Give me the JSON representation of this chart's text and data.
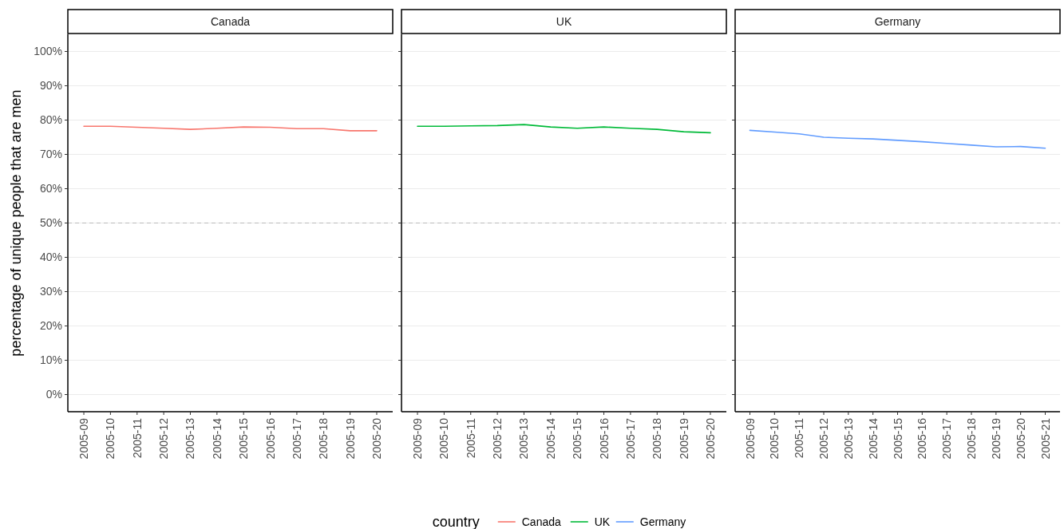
{
  "chart_data": [
    {
      "type": "line",
      "title": "Canada",
      "ylabel": "percentage of unique people that are men",
      "legend_title": "country",
      "legend": "bottom",
      "grid": "y",
      "line_style": "solid",
      "marker": "none",
      "categories": [
        "2005-09",
        "2005-10",
        "2005-11",
        "2005-12",
        "2005-13",
        "2005-14",
        "2005-15",
        "2005-16",
        "2005-17",
        "2005-18",
        "2005-19",
        "2005-20"
      ],
      "series": [
        {
          "name": "Canada",
          "color": "#f8766d",
          "values": [
            78.2,
            78.2,
            77.9,
            77.6,
            77.3,
            77.6,
            78.0,
            77.9,
            77.5,
            77.5,
            76.9,
            76.9
          ]
        }
      ],
      "ylim": [
        -5,
        105
      ],
      "yticks": [
        {
          "value": 0,
          "label": "0%"
        },
        {
          "value": 10,
          "label": "10%"
        },
        {
          "value": 20,
          "label": "20%"
        },
        {
          "value": 30,
          "label": "30%"
        },
        {
          "value": 40,
          "label": "40%"
        },
        {
          "value": 50,
          "label": "50%"
        },
        {
          "value": 60,
          "label": "60%"
        },
        {
          "value": 70,
          "label": "70%"
        },
        {
          "value": 80,
          "label": "80%"
        },
        {
          "value": 90,
          "label": "90%"
        },
        {
          "value": 100,
          "label": "100%"
        }
      ],
      "ref_lines": [
        {
          "axis": "y",
          "value": 50,
          "color": "#bbbbbb",
          "line_style": "dashed"
        }
      ]
    },
    {
      "type": "line",
      "title": "UK",
      "legend": "bottom",
      "grid": "y",
      "line_style": "solid",
      "marker": "none",
      "tick_labels": "x",
      "categories": [
        "2005-09",
        "2005-10",
        "2005-11",
        "2005-12",
        "2005-13",
        "2005-14",
        "2005-15",
        "2005-16",
        "2005-17",
        "2005-18",
        "2005-19",
        "2005-20"
      ],
      "series": [
        {
          "name": "UK",
          "color": "#00ba38",
          "values": [
            78.2,
            78.2,
            78.3,
            78.4,
            78.7,
            78.0,
            77.6,
            78.0,
            77.6,
            77.3,
            76.6,
            76.3
          ]
        }
      ],
      "ylim": [
        -5,
        105
      ],
      "yticks": [
        {
          "value": 0,
          "label": null
        },
        {
          "value": 10,
          "label": null
        },
        {
          "value": 20,
          "label": null
        },
        {
          "value": 30,
          "label": null
        },
        {
          "value": 40,
          "label": null
        },
        {
          "value": 50,
          "label": null
        },
        {
          "value": 60,
          "label": null
        },
        {
          "value": 70,
          "label": null
        },
        {
          "value": 80,
          "label": null
        },
        {
          "value": 90,
          "label": null
        },
        {
          "value": 100,
          "label": null
        }
      ],
      "ref_lines": [
        {
          "axis": "y",
          "value": 50,
          "color": "#bbbbbb",
          "line_style": "dashed"
        }
      ]
    },
    {
      "type": "line",
      "title": "Germany",
      "legend": "bottom",
      "grid": "y",
      "line_style": "solid",
      "marker": "none",
      "tick_labels": "x",
      "categories": [
        "2005-09",
        "2005-10",
        "2005-11",
        "2005-12",
        "2005-13",
        "2005-14",
        "2005-15",
        "2005-16",
        "2005-17",
        "2005-18",
        "2005-19",
        "2005-20",
        "2005-21"
      ],
      "series": [
        {
          "name": "Germany",
          "color": "#619cff",
          "values": [
            77.0,
            76.5,
            76.0,
            75.0,
            74.7,
            74.5,
            74.1,
            73.7,
            73.2,
            72.7,
            72.2,
            72.3,
            71.8
          ]
        }
      ],
      "ylim": [
        -5,
        105
      ],
      "yticks": [
        {
          "value": 0,
          "label": null
        },
        {
          "value": 10,
          "label": null
        },
        {
          "value": 20,
          "label": null
        },
        {
          "value": 30,
          "label": null
        },
        {
          "value": 40,
          "label": null
        },
        {
          "value": 50,
          "label": null
        },
        {
          "value": 60,
          "label": null
        },
        {
          "value": 70,
          "label": null
        },
        {
          "value": 80,
          "label": null
        },
        {
          "value": 90,
          "label": null
        },
        {
          "value": 100,
          "label": null
        }
      ],
      "ref_lines": [
        {
          "axis": "y",
          "value": 50,
          "color": "#bbbbbb",
          "line_style": "dashed"
        }
      ]
    }
  ]
}
